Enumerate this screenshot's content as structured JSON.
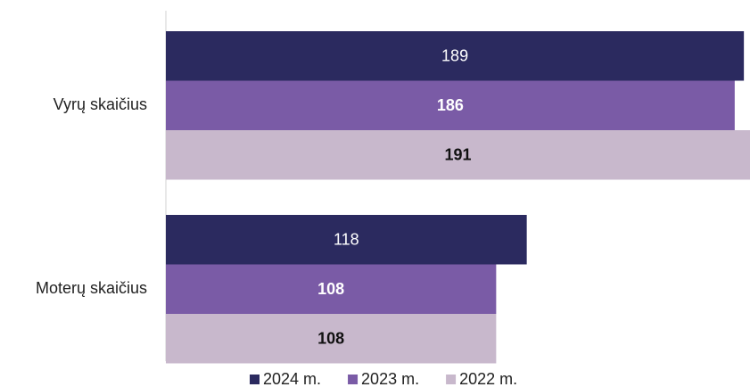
{
  "chart_data": {
    "type": "barh",
    "categories": [
      "Vyrų skaičius",
      "Moterų skaičius"
    ],
    "series": [
      {
        "name": "2024 m.",
        "color": "#2b2a5f",
        "values": [
          189,
          118
        ]
      },
      {
        "name": "2023 m.",
        "color": "#7a5ba6",
        "values": [
          186,
          108
        ]
      },
      {
        "name": "2022 m.",
        "color": "#c8b8cc",
        "values": [
          191,
          108
        ]
      }
    ],
    "xlim": [
      0,
      191
    ]
  }
}
